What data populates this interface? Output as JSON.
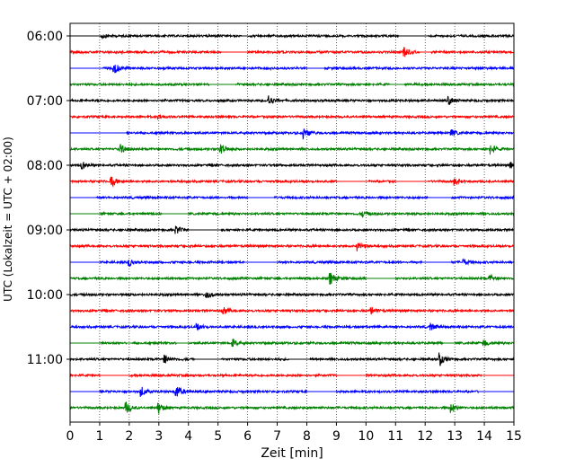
{
  "chart_data": {
    "type": "line",
    "title": "",
    "xlabel": "Zeit  [min]",
    "ylabel": "UTC (Lokalzeit = UTC + 02:00)",
    "xlim": [
      0,
      15
    ],
    "x_ticks": [
      0,
      1,
      2,
      3,
      4,
      5,
      6,
      7,
      8,
      9,
      10,
      11,
      12,
      13,
      14,
      15
    ],
    "y_tick_labels": [
      "06:00",
      "07:00",
      "08:00",
      "09:00",
      "10:00",
      "11:00"
    ],
    "grid": "vertical dotted at each minute",
    "trace_interval_min": 15,
    "trace_colors": [
      "#000000",
      "#ff0000",
      "#0000ff",
      "#008000"
    ],
    "traces": [
      {
        "start": "06:00",
        "color": "#000000",
        "flat_segments": [
          [
            0,
            1
          ],
          [
            5.8,
            6.0
          ],
          [
            11.1,
            12.1
          ]
        ],
        "events": [
          {
            "t": 1.1,
            "amp": 0.2
          }
        ]
      },
      {
        "start": "06:15",
        "color": "#ff0000",
        "flat_segments": [
          [
            5.1,
            6.0
          ],
          [
            11.8,
            12.2
          ]
        ],
        "events": [
          {
            "t": 11.3,
            "amp": 0.5
          }
        ]
      },
      {
        "start": "06:30",
        "color": "#0000ff",
        "flat_segments": [
          [
            0,
            1.1
          ],
          [
            8.0,
            8.6
          ]
        ],
        "events": [
          {
            "t": 1.5,
            "amp": 0.55
          }
        ]
      },
      {
        "start": "06:45",
        "color": "#008000",
        "flat_segments": [
          [
            4.7,
            5.6
          ],
          [
            10.8,
            11.3
          ]
        ],
        "events": []
      },
      {
        "start": "07:00",
        "color": "#000000",
        "flat_segments": [],
        "events": [
          {
            "t": 6.7,
            "amp": 0.55
          },
          {
            "t": 12.8,
            "amp": 0.4
          }
        ]
      },
      {
        "start": "07:15",
        "color": "#ff0000",
        "flat_segments": [],
        "events": [
          {
            "t": 3.0,
            "amp": 0.2
          }
        ]
      },
      {
        "start": "07:30",
        "color": "#0000ff",
        "flat_segments": [
          [
            0,
            1.9
          ]
        ],
        "events": [
          {
            "t": 7.9,
            "amp": 0.6
          },
          {
            "t": 12.9,
            "amp": 0.3
          }
        ]
      },
      {
        "start": "07:45",
        "color": "#008000",
        "flat_segments": [],
        "events": [
          {
            "t": 1.7,
            "amp": 0.45
          },
          {
            "t": 5.1,
            "amp": 0.5
          },
          {
            "t": 14.2,
            "amp": 0.5
          }
        ]
      },
      {
        "start": "08:00",
        "color": "#000000",
        "flat_segments": [],
        "events": [
          {
            "t": 0.4,
            "amp": 0.35
          },
          {
            "t": 14.9,
            "amp": 0.3
          }
        ]
      },
      {
        "start": "08:15",
        "color": "#ff0000",
        "flat_segments": [
          [
            9.0,
            10.1
          ],
          [
            11.0,
            12.1
          ]
        ],
        "events": [
          {
            "t": 1.4,
            "amp": 0.55
          },
          {
            "t": 13.0,
            "amp": 0.35
          }
        ]
      },
      {
        "start": "08:30",
        "color": "#0000ff",
        "flat_segments": [
          [
            0,
            0.9
          ],
          [
            6.0,
            6.9
          ],
          [
            12.1,
            12.9
          ]
        ],
        "events": []
      },
      {
        "start": "08:45",
        "color": "#008000",
        "flat_segments": [
          [
            0,
            1.0
          ],
          [
            3.1,
            4.0
          ]
        ],
        "events": [
          {
            "t": 9.9,
            "amp": 0.3
          }
        ]
      },
      {
        "start": "09:00",
        "color": "#000000",
        "flat_segments": [
          [
            4.0,
            5.1
          ]
        ],
        "events": [
          {
            "t": 3.6,
            "amp": 0.35
          }
        ]
      },
      {
        "start": "09:15",
        "color": "#ff0000",
        "flat_segments": [],
        "events": [
          {
            "t": 9.7,
            "amp": 0.6
          }
        ]
      },
      {
        "start": "09:30",
        "color": "#0000ff",
        "flat_segments": [
          [
            0,
            1.0
          ],
          [
            5.9,
            7.0
          ],
          [
            11.9,
            12.9
          ]
        ],
        "events": [
          {
            "t": 2.0,
            "amp": 0.35
          },
          {
            "t": 13.3,
            "amp": 0.3
          }
        ]
      },
      {
        "start": "09:45",
        "color": "#008000",
        "flat_segments": [
          [
            10.0,
            11.0
          ]
        ],
        "events": [
          {
            "t": 8.8,
            "amp": 0.6
          },
          {
            "t": 14.2,
            "amp": 0.35
          }
        ]
      },
      {
        "start": "10:00",
        "color": "#000000",
        "flat_segments": [],
        "events": [
          {
            "t": 4.6,
            "amp": 0.4
          }
        ]
      },
      {
        "start": "10:15",
        "color": "#ff0000",
        "flat_segments": [],
        "events": [
          {
            "t": 5.2,
            "amp": 0.3
          },
          {
            "t": 10.2,
            "amp": 0.3
          }
        ]
      },
      {
        "start": "10:30",
        "color": "#0000ff",
        "flat_segments": [],
        "events": [
          {
            "t": 4.3,
            "amp": 0.3
          },
          {
            "t": 12.2,
            "amp": 0.3
          }
        ]
      },
      {
        "start": "10:45",
        "color": "#008000",
        "flat_segments": [
          [
            0,
            1.0
          ],
          [
            1.9,
            2.1
          ],
          [
            3.6,
            4.0
          ],
          [
            12.6,
            13.0
          ]
        ],
        "events": [
          {
            "t": 5.5,
            "amp": 0.35
          },
          {
            "t": 14.0,
            "amp": 0.3
          }
        ]
      },
      {
        "start": "11:00",
        "color": "#000000",
        "flat_segments": [
          [
            4.2,
            5.1
          ],
          [
            7.4,
            8.1
          ]
        ],
        "events": [
          {
            "t": 3.2,
            "amp": 0.4
          },
          {
            "t": 12.5,
            "amp": 0.6
          }
        ]
      },
      {
        "start": "11:15",
        "color": "#ff0000",
        "flat_segments": [
          [
            1.0,
            2.0
          ],
          [
            9.0,
            10.0
          ],
          [
            13.9,
            15.0
          ]
        ],
        "events": []
      },
      {
        "start": "11:30",
        "color": "#0000ff",
        "flat_segments": [
          [
            0,
            1.0
          ],
          [
            8.0,
            9.0
          ],
          [
            13.8,
            15.0
          ]
        ],
        "events": [
          {
            "t": 2.4,
            "amp": 0.5
          },
          {
            "t": 3.6,
            "amp": 0.65
          }
        ]
      },
      {
        "start": "11:45",
        "color": "#008000",
        "flat_segments": [],
        "events": [
          {
            "t": 1.9,
            "amp": 0.55
          },
          {
            "t": 3.0,
            "amp": 0.5
          },
          {
            "t": 12.9,
            "amp": 0.45
          }
        ]
      }
    ]
  }
}
